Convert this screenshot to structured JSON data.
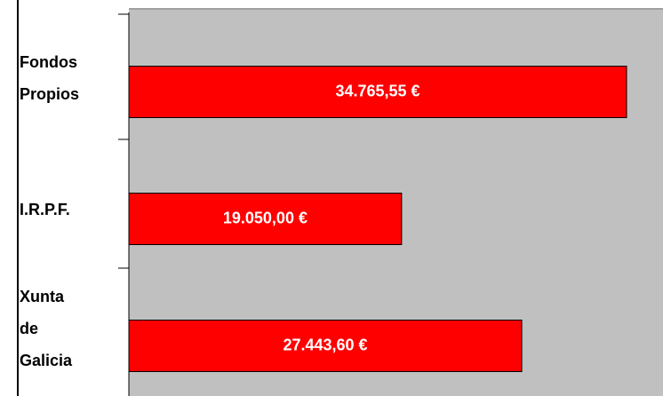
{
  "chart_data": {
    "type": "bar",
    "orientation": "horizontal",
    "categories": [
      "Fondos Propios",
      "I.R.P.F.",
      "Xunta de Galicia"
    ],
    "values": [
      34765.55,
      19050,
      27443.6
    ],
    "value_labels": [
      "34.765,55 €",
      "19.050,00 €",
      "27.443,60 €"
    ],
    "color": "#ff0000"
  }
}
